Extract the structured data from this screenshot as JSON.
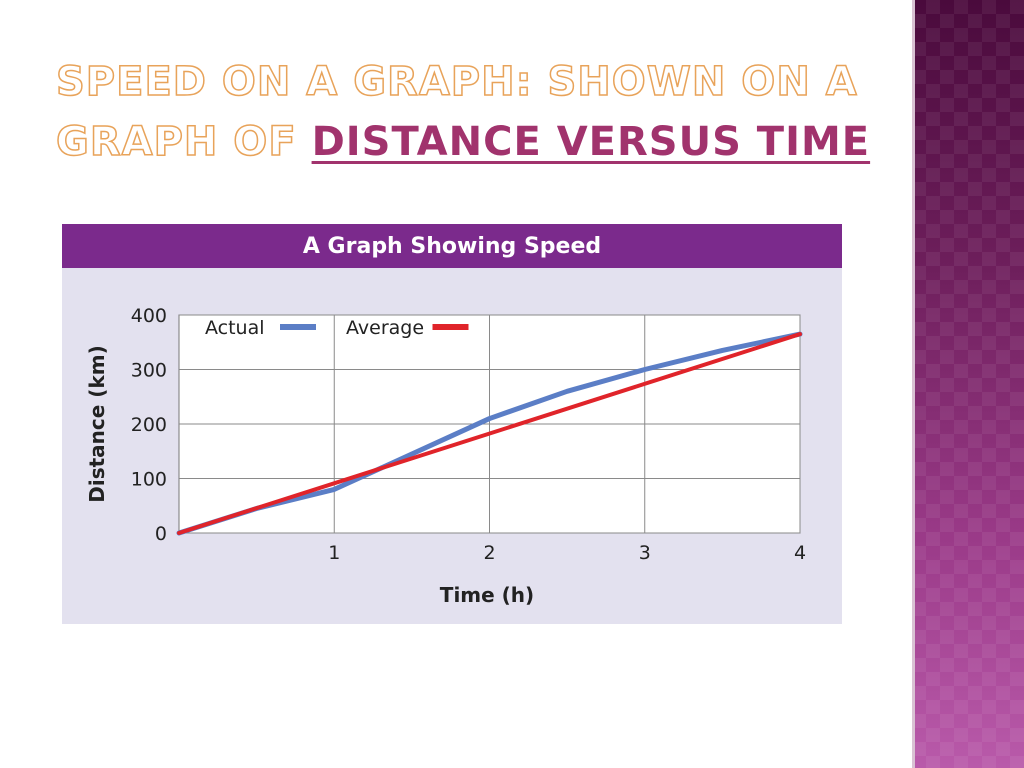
{
  "slide": {
    "title_part1": "SPEED ON A GRAPH: SHOWN ON A GRAPH OF",
    "title_part2": "DISTANCE VERSUS TIME"
  },
  "colors": {
    "title_outline": "#e8a35a",
    "title_link": "#a1336d",
    "header_bg": "#7b2a8c",
    "panel_bg": "#e3e1ef",
    "actual": "#5b7ec6",
    "average": "#e0242a"
  },
  "chart_data": {
    "type": "line",
    "title": "A Graph Showing Speed",
    "xlabel": "Time (h)",
    "ylabel": "Distance (km)",
    "xlim": [
      0,
      4
    ],
    "ylim": [
      0,
      400
    ],
    "xticks": [
      1,
      2,
      3,
      4
    ],
    "yticks": [
      0,
      100,
      200,
      300,
      400
    ],
    "grid": true,
    "legend": "top-left",
    "series": [
      {
        "name": "Actual",
        "x": [
          0,
          0.5,
          1,
          1.5,
          2,
          2.5,
          3,
          3.5,
          4
        ],
        "y": [
          0,
          45,
          80,
          145,
          210,
          260,
          300,
          335,
          365
        ]
      },
      {
        "name": "Average",
        "x": [
          0,
          4
        ],
        "y": [
          0,
          365
        ]
      }
    ]
  }
}
